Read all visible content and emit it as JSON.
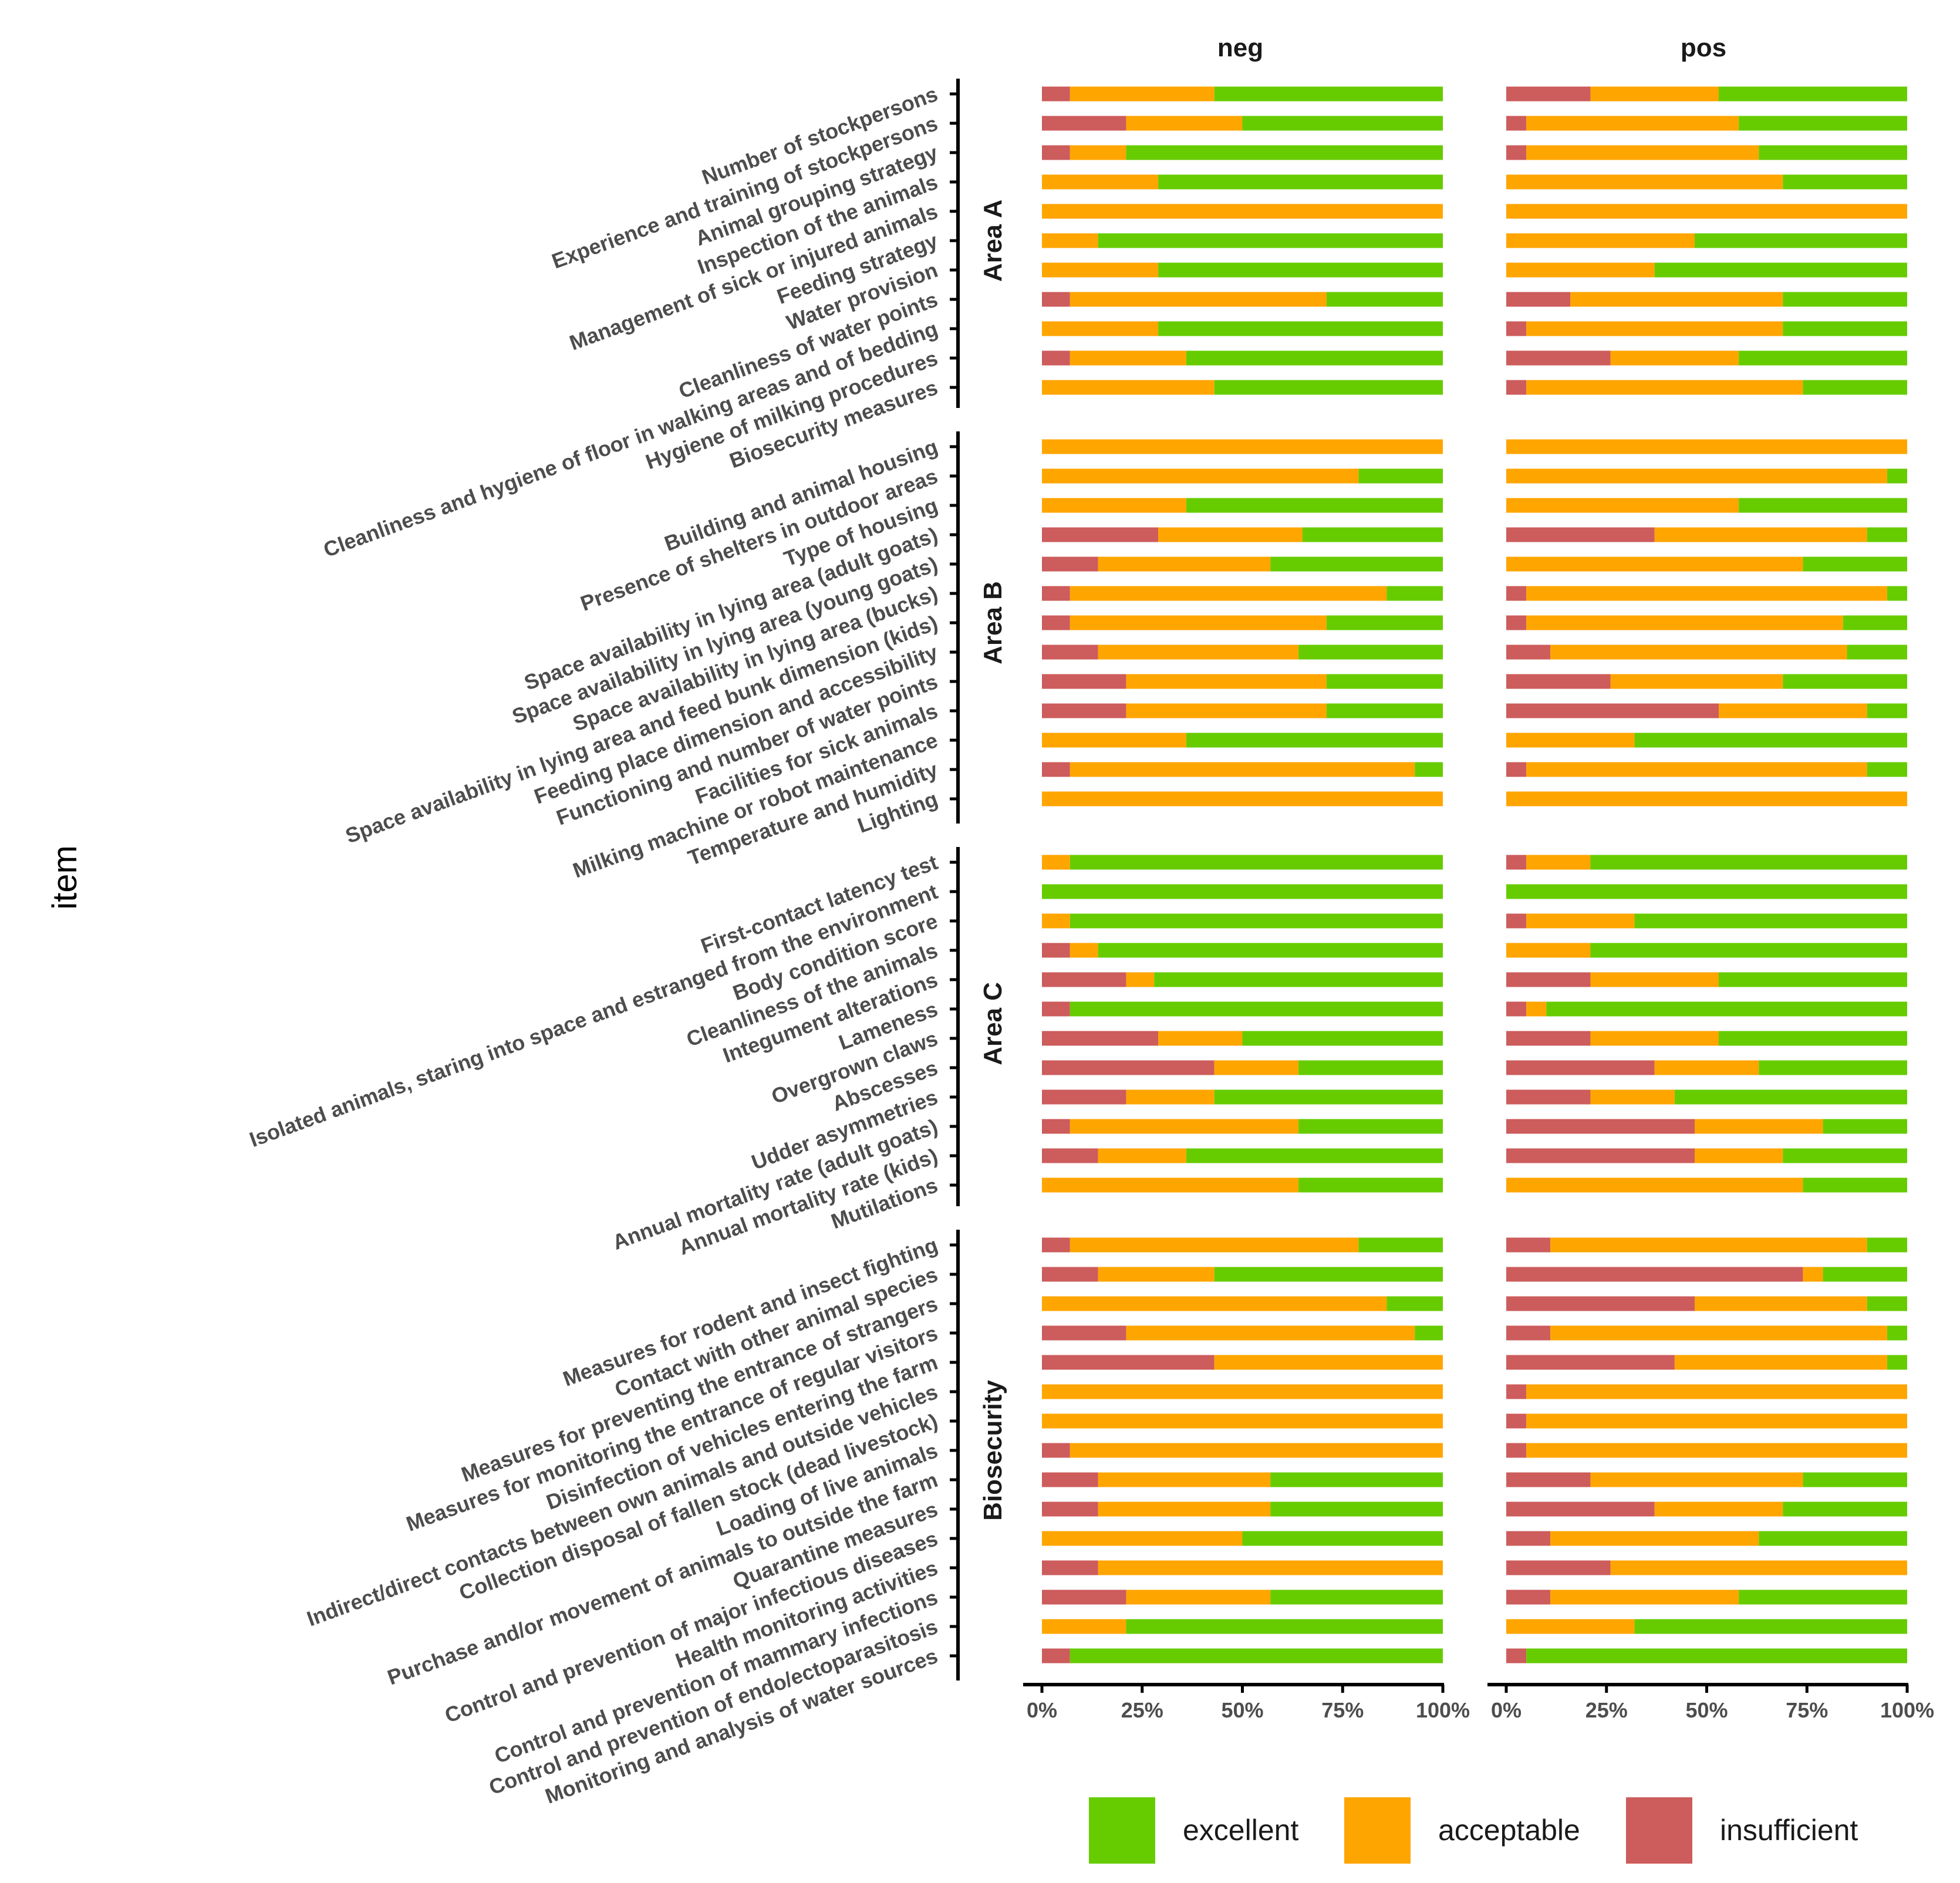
{
  "chart_data": {
    "type": "bar",
    "orientation": "horizontal",
    "stacked": true,
    "normalized": true,
    "ylabel": "item",
    "x_ticks": [
      "0%",
      "25%",
      "50%",
      "75%",
      "100%"
    ],
    "x_range": [
      0,
      100
    ],
    "facets": [
      "neg",
      "pos"
    ],
    "legend": [
      {
        "name": "excellent",
        "color": "#66cc00"
      },
      {
        "name": "acceptable",
        "color": "#ffa500"
      },
      {
        "name": "insufficient",
        "color": "#cd5c5c"
      }
    ],
    "groups": [
      {
        "name": "Area A",
        "items": [
          {
            "label": "Number of stockpersons",
            "neg": [
              7,
              36,
              57
            ],
            "pos": [
              21,
              32,
              47
            ]
          },
          {
            "label": "Experience and training of stockpersons",
            "neg": [
              21,
              29,
              50
            ],
            "pos": [
              5,
              53,
              42
            ]
          },
          {
            "label": "Animal grouping strategy",
            "neg": [
              7,
              14,
              79
            ],
            "pos": [
              5,
              58,
              37
            ]
          },
          {
            "label": "Inspection of the animals",
            "neg": [
              0,
              29,
              71
            ],
            "pos": [
              0,
              69,
              31
            ]
          },
          {
            "label": "Management of sick or injured animals",
            "neg": [
              0,
              100,
              0
            ],
            "pos": [
              0,
              100,
              0
            ]
          },
          {
            "label": "Feeding strategy",
            "neg": [
              0,
              14,
              86
            ],
            "pos": [
              0,
              47,
              53
            ]
          },
          {
            "label": "Water provision",
            "neg": [
              0,
              29,
              71
            ],
            "pos": [
              0,
              37,
              63
            ]
          },
          {
            "label": "Cleanliness of water points",
            "neg": [
              7,
              64,
              29
            ],
            "pos": [
              16,
              53,
              31
            ]
          },
          {
            "label": "Cleanliness and hygiene of floor in walking areas and of bedding",
            "neg": [
              0,
              29,
              71
            ],
            "pos": [
              5,
              64,
              31
            ]
          },
          {
            "label": "Hygiene of milking procedures",
            "neg": [
              7,
              29,
              64
            ],
            "pos": [
              26,
              32,
              42
            ]
          },
          {
            "label": "Biosecurity measures",
            "neg": [
              0,
              43,
              57
            ],
            "pos": [
              5,
              69,
              26
            ]
          }
        ]
      },
      {
        "name": "Area B",
        "items": [
          {
            "label": "Building and animal housing",
            "neg": [
              0,
              100,
              0
            ],
            "pos": [
              0,
              100,
              0
            ]
          },
          {
            "label": "Presence of shelters in outdoor areas",
            "neg": [
              0,
              79,
              21
            ],
            "pos": [
              0,
              95,
              5
            ]
          },
          {
            "label": "Type of housing",
            "neg": [
              0,
              36,
              64
            ],
            "pos": [
              0,
              58,
              42
            ]
          },
          {
            "label": "Space availability in lying area (adult goats)",
            "neg": [
              29,
              36,
              35
            ],
            "pos": [
              37,
              53,
              10
            ]
          },
          {
            "label": "Space availability in lying area (young goats)",
            "neg": [
              14,
              43,
              43
            ],
            "pos": [
              0,
              74,
              26
            ]
          },
          {
            "label": "Space availability in lying area (bucks)",
            "neg": [
              7,
              79,
              14
            ],
            "pos": [
              5,
              90,
              5
            ]
          },
          {
            "label": "Space availability in lying area and feed bunk dimension (kids)",
            "neg": [
              7,
              64,
              29
            ],
            "pos": [
              5,
              79,
              16
            ]
          },
          {
            "label": "Feeding place dimension and accessibility",
            "neg": [
              14,
              50,
              36
            ],
            "pos": [
              11,
              74,
              15
            ]
          },
          {
            "label": "Functioning and number of water points",
            "neg": [
              21,
              50,
              29
            ],
            "pos": [
              26,
              43,
              31
            ]
          },
          {
            "label": "Facilities for sick animals",
            "neg": [
              21,
              50,
              29
            ],
            "pos": [
              53,
              37,
              10
            ]
          },
          {
            "label": "Milking machine or robot maintenance",
            "neg": [
              0,
              36,
              64
            ],
            "pos": [
              0,
              32,
              68
            ]
          },
          {
            "label": "Temperature and humidity",
            "neg": [
              7,
              86,
              7
            ],
            "pos": [
              5,
              85,
              10
            ]
          },
          {
            "label": "Lighting",
            "neg": [
              0,
              100,
              0
            ],
            "pos": [
              0,
              100,
              0
            ]
          }
        ]
      },
      {
        "name": "Area C",
        "items": [
          {
            "label": "First-contact latency test",
            "neg": [
              0,
              7,
              93
            ],
            "pos": [
              5,
              16,
              79
            ]
          },
          {
            "label": "Isolated animals, staring into space and estranged from the environment",
            "neg": [
              0,
              0,
              100
            ],
            "pos": [
              0,
              0,
              100
            ]
          },
          {
            "label": "Body condition score",
            "neg": [
              0,
              7,
              93
            ],
            "pos": [
              5,
              27,
              68
            ]
          },
          {
            "label": "Cleanliness of the animals",
            "neg": [
              7,
              7,
              86
            ],
            "pos": [
              0,
              21,
              79
            ]
          },
          {
            "label": "Integument alterations",
            "neg": [
              21,
              7,
              72
            ],
            "pos": [
              21,
              32,
              47
            ]
          },
          {
            "label": "Lameness",
            "neg": [
              7,
              0,
              93
            ],
            "pos": [
              5,
              5,
              90
            ]
          },
          {
            "label": "Overgrown claws",
            "neg": [
              29,
              21,
              50
            ],
            "pos": [
              21,
              32,
              47
            ]
          },
          {
            "label": "Abscesses",
            "neg": [
              43,
              21,
              36
            ],
            "pos": [
              37,
              26,
              37
            ]
          },
          {
            "label": "Udder asymmetries",
            "neg": [
              21,
              22,
              57
            ],
            "pos": [
              21,
              21,
              58
            ]
          },
          {
            "label": "Annual mortality rate (adult goats)",
            "neg": [
              7,
              57,
              36
            ],
            "pos": [
              47,
              32,
              21
            ]
          },
          {
            "label": "Annual mortality rate (kids)",
            "neg": [
              14,
              22,
              64
            ],
            "pos": [
              47,
              22,
              31
            ]
          },
          {
            "label": "Mutilations",
            "neg": [
              0,
              64,
              36
            ],
            "pos": [
              0,
              74,
              26
            ]
          }
        ]
      },
      {
        "name": "Biosecurity",
        "items": [
          {
            "label": "Measures for rodent and insect fighting",
            "neg": [
              7,
              72,
              21
            ],
            "pos": [
              11,
              79,
              10
            ]
          },
          {
            "label": "Contact with other animal species",
            "neg": [
              14,
              29,
              57
            ],
            "pos": [
              74,
              5,
              21
            ]
          },
          {
            "label": "Measures for preventing the entrance of strangers",
            "neg": [
              0,
              86,
              14
            ],
            "pos": [
              47,
              43,
              10
            ]
          },
          {
            "label": "Measures for monitoring the entrance of regular visitors",
            "neg": [
              21,
              72,
              7
            ],
            "pos": [
              11,
              84,
              5
            ]
          },
          {
            "label": "Disinfection of vehicles entering the farm",
            "neg": [
              43,
              57,
              0
            ],
            "pos": [
              42,
              53,
              5
            ]
          },
          {
            "label": "Indirect/direct contacts between own animals and outside vehicles",
            "neg": [
              0,
              100,
              0
            ],
            "pos": [
              5,
              95,
              0
            ]
          },
          {
            "label": "Collection disposal of fallen stock (dead livestock)",
            "neg": [
              0,
              100,
              0
            ],
            "pos": [
              5,
              95,
              0
            ]
          },
          {
            "label": "Loading of live animals",
            "neg": [
              7,
              93,
              0
            ],
            "pos": [
              5,
              95,
              0
            ]
          },
          {
            "label": "Purchase and/or movement of animals to outside the farm",
            "neg": [
              14,
              43,
              43
            ],
            "pos": [
              21,
              53,
              26
            ]
          },
          {
            "label": "Quarantine measures",
            "neg": [
              14,
              43,
              43
            ],
            "pos": [
              37,
              32,
              31
            ]
          },
          {
            "label": "Control and prevention of major infectious diseases",
            "neg": [
              0,
              50,
              50
            ],
            "pos": [
              11,
              52,
              37
            ]
          },
          {
            "label": "Health monitoring activities",
            "neg": [
              14,
              86,
              0
            ],
            "pos": [
              26,
              74,
              0
            ]
          },
          {
            "label": "Control and prevention of mammary infections",
            "neg": [
              21,
              36,
              43
            ],
            "pos": [
              11,
              47,
              42
            ]
          },
          {
            "label": "Control and prevention of endo/ectoparasitosis",
            "neg": [
              0,
              21,
              79
            ],
            "pos": [
              0,
              32,
              68
            ]
          },
          {
            "label": "Monitoring and analysis of water sources",
            "neg": [
              7,
              0,
              93
            ],
            "pos": [
              5,
              0,
              95
            ]
          }
        ]
      }
    ]
  }
}
